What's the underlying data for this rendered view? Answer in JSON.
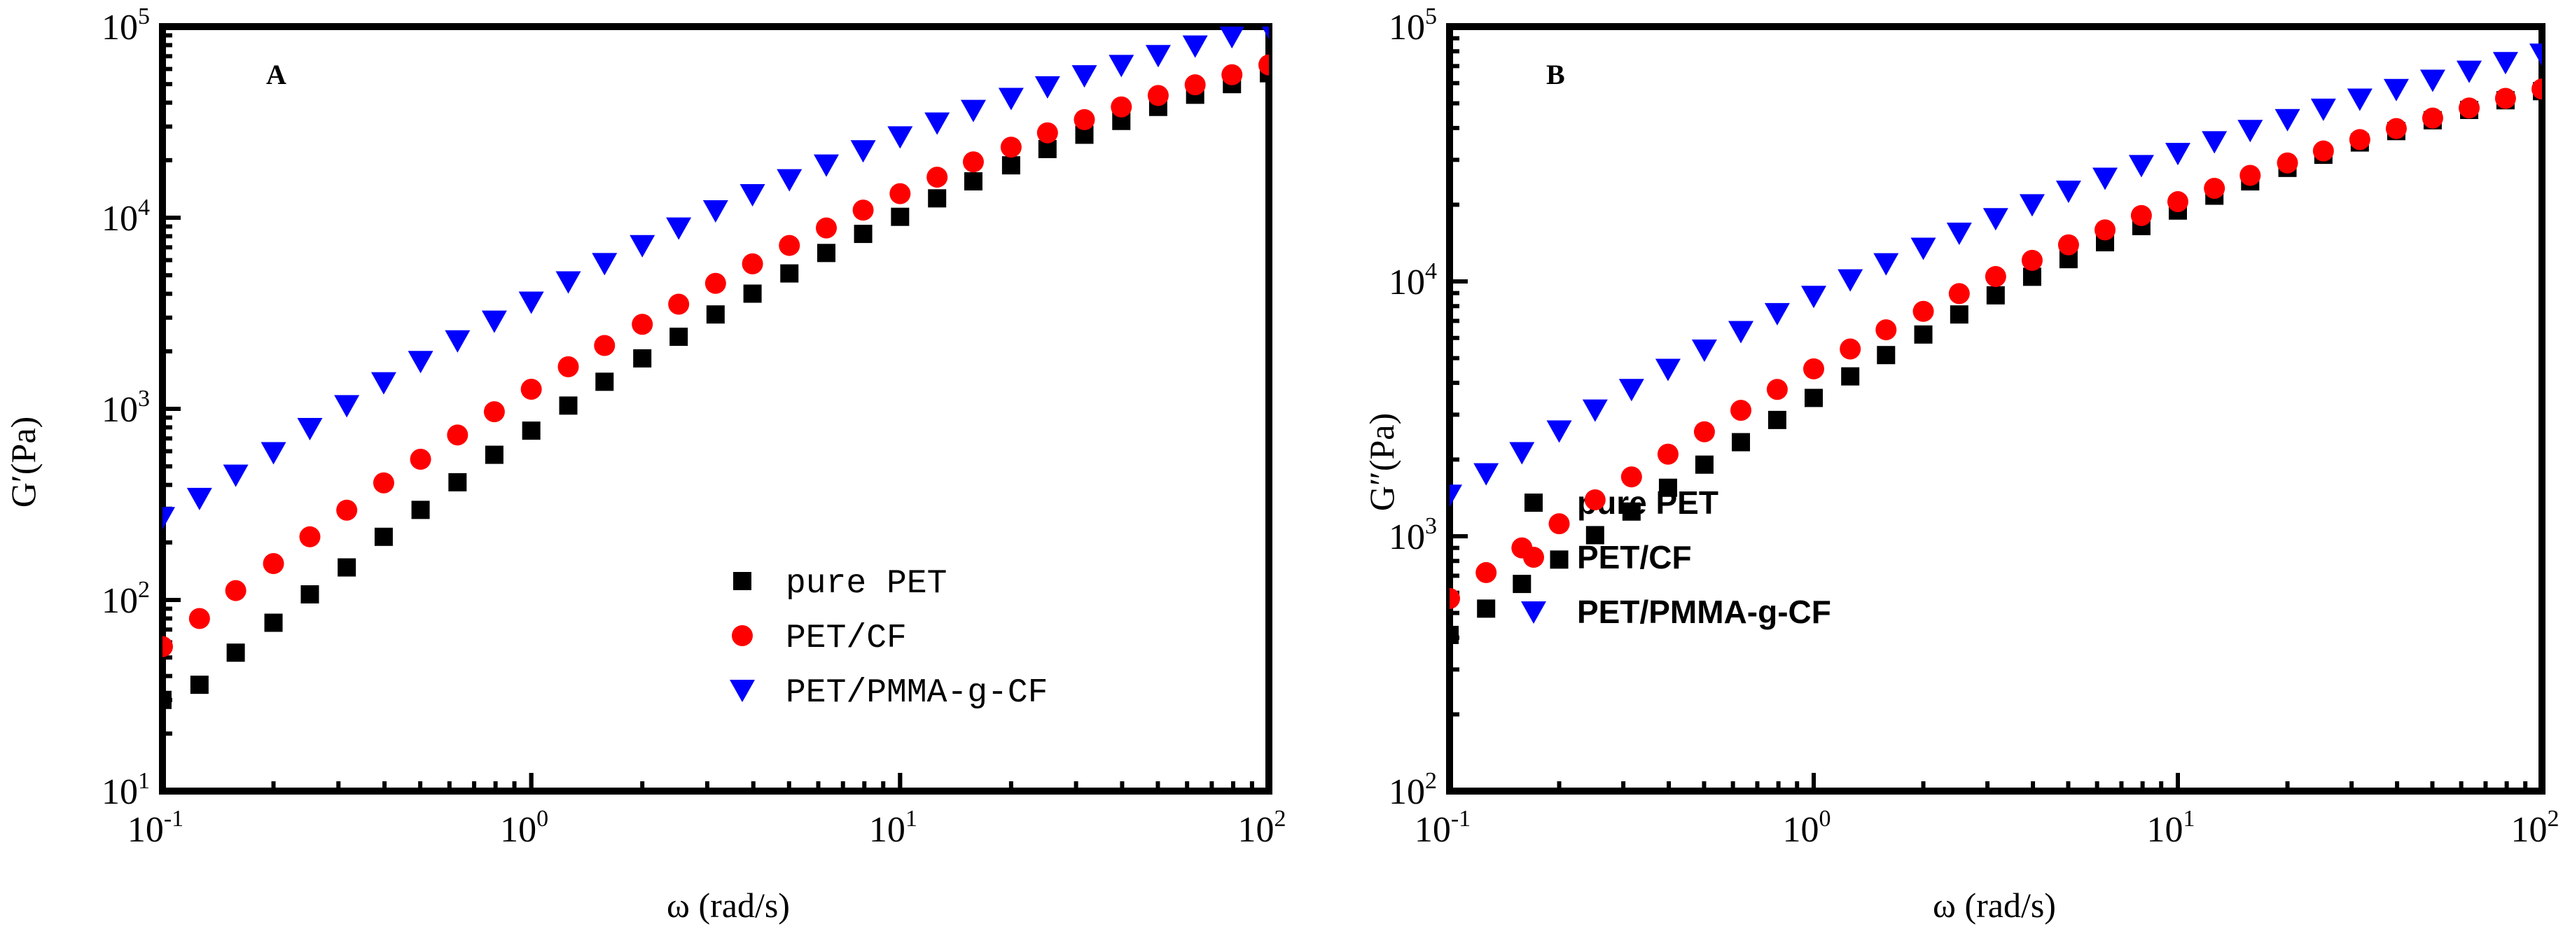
{
  "chart_data": [
    {
      "type": "scatter",
      "panel": "A",
      "xscale": "log",
      "yscale": "log",
      "xlim": [
        0.1,
        100
      ],
      "ylim": [
        10,
        100000
      ],
      "xlabel": "ω (rad/s)",
      "ylabel": "G′(Pa)",
      "legend_position": "lower-right",
      "xticks": [
        {
          "base": "10",
          "exp": "-1"
        },
        {
          "base": "10",
          "exp": "0"
        },
        {
          "base": "10",
          "exp": "1"
        },
        {
          "base": "10",
          "exp": "2"
        }
      ],
      "yticks": [
        {
          "base": "10",
          "exp": "1"
        },
        {
          "base": "10",
          "exp": "2"
        },
        {
          "base": "10",
          "exp": "3"
        },
        {
          "base": "10",
          "exp": "4"
        },
        {
          "base": "10",
          "exp": "5"
        }
      ],
      "x": [
        0.1,
        0.126,
        0.158,
        0.2,
        0.251,
        0.316,
        0.398,
        0.501,
        0.631,
        0.794,
        1.0,
        1.26,
        1.58,
        2.0,
        2.51,
        3.16,
        3.98,
        5.01,
        6.31,
        7.94,
        10.0,
        12.6,
        15.8,
        20.0,
        25.1,
        31.6,
        39.8,
        50.1,
        63.1,
        79.4,
        100.0
      ],
      "series": [
        {
          "name": "pure PET",
          "marker": "square",
          "color": "#000000",
          "values": [
            30,
            36,
            53,
            76,
            107,
            148,
            214,
            296,
            413,
            575,
            769,
            1040,
            1386,
            1837,
            2383,
            3118,
            4006,
            5111,
            6540,
            8230,
            10110,
            12630,
            15500,
            18800,
            22880,
            27180,
            32100,
            38000,
            44000,
            50000,
            57000
          ]
        },
        {
          "name": "PET/CF",
          "marker": "circle",
          "color": "#ff0000",
          "values": [
            57,
            80,
            112,
            155,
            214,
            295,
            410,
            545,
            730,
            966,
            1266,
            1660,
            2146,
            2768,
            3528,
            4536,
            5738,
            7162,
            8839,
            10960,
            13360,
            16300,
            19600,
            23400,
            27800,
            32600,
            38000,
            43600,
            49600,
            56000,
            63000
          ]
        },
        {
          "name": "PET/PMMA-g-CF",
          "marker": "triangle-down",
          "color": "#0000ff",
          "values": [
            270,
            340,
            450,
            590,
            790,
            1040,
            1370,
            1770,
            2270,
            2880,
            3620,
            4620,
            5760,
            7150,
            8840,
            10880,
            13210,
            15820,
            18880,
            22430,
            26520,
            31330,
            36450,
            42120,
            48470,
            55380,
            62700,
            70600,
            79200,
            88700,
            99200
          ]
        }
      ]
    },
    {
      "type": "scatter",
      "panel": "B",
      "xscale": "log",
      "yscale": "log",
      "xlim": [
        0.1,
        100
      ],
      "ylim": [
        100,
        100000
      ],
      "xlabel": "ω (rad/s)",
      "ylabel": "G″(Pa)",
      "legend_position": "center-left",
      "xticks": [
        {
          "base": "10",
          "exp": "-1"
        },
        {
          "base": "10",
          "exp": "0"
        },
        {
          "base": "10",
          "exp": "1"
        },
        {
          "base": "10",
          "exp": "2"
        }
      ],
      "yticks": [
        {
          "base": "10",
          "exp": "2"
        },
        {
          "base": "10",
          "exp": "3"
        },
        {
          "base": "10",
          "exp": "4"
        },
        {
          "base": "10",
          "exp": "5"
        }
      ],
      "x": [
        0.1,
        0.126,
        0.158,
        0.2,
        0.251,
        0.316,
        0.398,
        0.501,
        0.631,
        0.794,
        1.0,
        1.26,
        1.58,
        2.0,
        2.51,
        3.16,
        3.98,
        5.01,
        6.31,
        7.94,
        10.0,
        12.6,
        15.8,
        20.0,
        25.1,
        31.6,
        39.8,
        50.1,
        63.1,
        79.4,
        100.0
      ],
      "series": [
        {
          "name": "pure PET",
          "marker": "square",
          "color": "#000000",
          "values": [
            410,
            520,
            650,
            810,
            1010,
            1250,
            1550,
            1910,
            2340,
            2860,
            3490,
            4240,
            5140,
            6190,
            7420,
            8820,
            10430,
            12230,
            14250,
            16490,
            18970,
            21700,
            24700,
            27900,
            31400,
            35100,
            38900,
            42900,
            47100,
            51400,
            55800
          ]
        },
        {
          "name": "PET/CF",
          "marker": "circle",
          "color": "#ff0000",
          "values": [
            570,
            720,
            900,
            1120,
            1390,
            1710,
            2100,
            2570,
            3120,
            3770,
            4540,
            5430,
            6460,
            7630,
            8960,
            10450,
            12100,
            13920,
            15930,
            18140,
            20560,
            23200,
            26070,
            29170,
            32500,
            36040,
            39800,
            43770,
            47950,
            52300,
            56900
          ]
        },
        {
          "name": "PET/PMMA-g-CF",
          "marker": "triangle-down",
          "color": "#0000ff",
          "values": [
            1450,
            1760,
            2130,
            2590,
            3130,
            3770,
            4520,
            5380,
            6360,
            7480,
            8740,
            10150,
            11740,
            13510,
            15470,
            17640,
            20010,
            22610,
            25430,
            28500,
            31800,
            35340,
            39140,
            43170,
            47430,
            51940,
            56690,
            61650,
            66860,
            72300,
            78000
          ]
        }
      ]
    }
  ]
}
